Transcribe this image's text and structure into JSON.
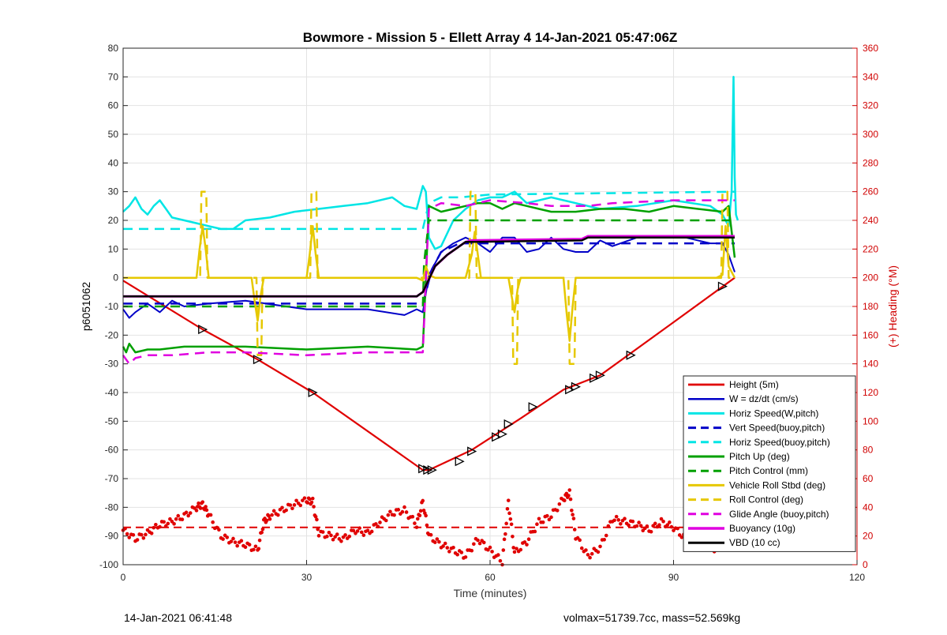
{
  "page": {
    "footer_left": "14-Jan-2021 06:41:48",
    "footer_right": "volmax=51739.7cc, mass=52.569kg"
  },
  "chart_data": {
    "type": "line",
    "title": "Bowmore - Mission 5 - Ellett Array 4 14-Jan-2021 05:47:06Z",
    "xlabel": "Time (minutes)",
    "ylabel": "p6051062",
    "ylabel_right": "(+) Heading (°M)",
    "xlim": [
      0,
      120
    ],
    "ylim": [
      -100,
      80
    ],
    "ylim_right": [
      0,
      360
    ],
    "xticks": [
      0,
      30,
      60,
      90,
      120
    ],
    "yticks": [
      -100,
      -90,
      -80,
      -70,
      -60,
      -50,
      -40,
      -30,
      -20,
      -10,
      0,
      10,
      20,
      30,
      40,
      50,
      60,
      70,
      80
    ],
    "yticks_right": [
      0,
      20,
      40,
      60,
      80,
      100,
      120,
      140,
      160,
      180,
      200,
      220,
      240,
      260,
      280,
      300,
      320,
      340,
      360
    ],
    "grid": true,
    "legend_position": "bottom-right",
    "colors": {
      "height": "#e00000",
      "w": "#0000c8",
      "horiz_speed": "#00e5e5",
      "vert_speed_buoy": "#0000c8",
      "horiz_speed_buoy": "#00e5e5",
      "pitch_up": "#00a000",
      "pitch_control": "#00a000",
      "vehicle_roll": "#e6c800",
      "roll_control": "#e6c800",
      "glide_angle": "#e000e0",
      "buoyancy": "#e000e0",
      "vbd": "#000000",
      "heading": "#e00000",
      "right_axis": "#d00000"
    },
    "series": [
      {
        "name": "Height (5m)",
        "style": "solid",
        "color": "#e00000",
        "width": 2.2,
        "x": [
          0,
          13,
          22,
          31,
          49,
          50,
          57,
          65,
          72,
          78,
          90,
          100
        ],
        "y": [
          -1,
          -18,
          -28.5,
          -40,
          -67,
          -67,
          -60,
          -49,
          -39,
          -34,
          -15.5,
          0
        ]
      },
      {
        "name": "W = dz/dt (cm/s)",
        "style": "solid",
        "color": "#0000c8",
        "width": 2,
        "x": [
          0,
          1,
          2,
          4,
          6,
          8,
          10,
          14,
          20,
          30,
          40,
          46,
          48,
          49,
          50,
          52,
          54,
          56,
          58,
          60,
          62,
          64,
          66,
          68,
          70,
          72,
          74,
          76,
          78,
          80,
          84,
          88,
          92,
          96,
          98,
          99,
          100
        ],
        "y": [
          -11,
          -14,
          -12,
          -9,
          -12,
          -8,
          -10,
          -9,
          -8,
          -11,
          -11,
          -13,
          -11,
          -12,
          1,
          9,
          12,
          14,
          12,
          9,
          14,
          14,
          9,
          10,
          14,
          10,
          9,
          9,
          13,
          11,
          14,
          14,
          14,
          12,
          12,
          8,
          2
        ]
      },
      {
        "name": "Horiz Speed(W,pitch)",
        "style": "solid",
        "color": "#00e5e5",
        "width": 2.5,
        "x": [
          0,
          1,
          2,
          3,
          4,
          5,
          6,
          7,
          8,
          10,
          12,
          14,
          16,
          18,
          20,
          24,
          28,
          32,
          36,
          40,
          44,
          46,
          48,
          49,
          49.5,
          50,
          51,
          52,
          54,
          56,
          58,
          60,
          62,
          64,
          66,
          68,
          70,
          74,
          78,
          84,
          90,
          96,
          98,
          99,
          99.5,
          99.8,
          100,
          100.2,
          100.5
        ],
        "y": [
          23,
          25,
          28,
          24,
          22,
          25,
          27,
          24,
          21,
          20,
          19,
          18,
          17,
          17,
          20,
          21,
          23,
          24,
          25,
          26,
          28,
          25,
          24,
          32,
          30,
          14,
          10,
          11,
          20,
          24,
          27,
          28,
          28,
          30,
          26,
          27,
          28,
          26,
          24,
          25,
          27,
          25,
          22,
          18,
          30,
          70,
          35,
          22,
          20
        ]
      },
      {
        "name": "Vert Speed(buoy,pitch)",
        "style": "dashed",
        "color": "#0000c8",
        "width": 2.5,
        "x": [
          0,
          49,
          50.5,
          52,
          55,
          100
        ],
        "y": [
          -9,
          -9,
          3,
          9,
          12,
          12
        ]
      },
      {
        "name": "Horiz Speed(buoy,pitch)",
        "style": "dashed",
        "color": "#00e5e5",
        "width": 2.5,
        "x": [
          0,
          49,
          50,
          52,
          55,
          60,
          100
        ],
        "y": [
          17,
          17,
          26,
          28,
          28,
          29,
          30
        ]
      },
      {
        "name": "Pitch Up (deg)",
        "style": "solid",
        "color": "#00a000",
        "width": 2.5,
        "x": [
          0,
          0.5,
          1,
          2,
          4,
          6,
          10,
          20,
          30,
          40,
          48,
          49,
          49.2,
          50,
          52,
          54,
          56,
          58,
          60,
          62,
          64,
          66,
          68,
          70,
          74,
          78,
          82,
          86,
          90,
          94,
          98,
          99,
          100
        ],
        "y": [
          -24,
          -26,
          -23,
          -26,
          -25,
          -25,
          -24,
          -24,
          -25,
          -24,
          -25,
          -24,
          -15,
          25,
          23,
          24,
          25,
          26,
          26,
          24,
          26,
          25,
          24,
          23,
          23,
          24,
          24,
          23,
          25,
          24,
          23,
          25,
          7
        ]
      },
      {
        "name": "Pitch Control (mm)",
        "style": "dashed",
        "color": "#00a000",
        "width": 2.5,
        "x": [
          0,
          49,
          49.2,
          50,
          100
        ],
        "y": [
          -10,
          -10,
          5,
          20,
          20
        ]
      },
      {
        "name": "Vehicle Roll Stbd (deg)",
        "style": "solid",
        "color": "#e6c800",
        "width": 2.5,
        "x": [
          0,
          12,
          12.5,
          13,
          13.5,
          14,
          21,
          21.5,
          22,
          22.5,
          23,
          30,
          30.5,
          31,
          31.5,
          32,
          48,
          49,
          49.5,
          50,
          51,
          56,
          57,
          57.5,
          58,
          58.5,
          63,
          63.5,
          64,
          64.5,
          65,
          72,
          72.5,
          73,
          73.5,
          74,
          97,
          98,
          98.5,
          99,
          100
        ],
        "y": [
          0,
          0,
          10,
          18,
          10,
          0,
          0,
          -8,
          -15,
          -6,
          0,
          0,
          8,
          18,
          8,
          0,
          0,
          -1,
          4,
          1,
          0,
          0,
          8,
          16,
          8,
          0,
          0,
          -6,
          -12,
          -4,
          0,
          0,
          -12,
          -22,
          -10,
          0,
          0,
          1,
          18,
          4,
          0
        ]
      },
      {
        "name": "Roll Control (deg)",
        "style": "dashed",
        "color": "#e6c800",
        "width": 2.5,
        "x": [
          0,
          12.6,
          12.8,
          13.6,
          13.8,
          21.8,
          22,
          22.6,
          22.8,
          30.6,
          30.8,
          31.6,
          31.8,
          56.6,
          56.8,
          57.6,
          57.8,
          63.6,
          63.8,
          64.4,
          64.6,
          72.8,
          73,
          73.8,
          74,
          97.8,
          98,
          98.8,
          99,
          100
        ],
        "y": [
          0,
          0,
          30,
          30,
          0,
          0,
          -27,
          -27,
          0,
          0,
          30,
          30,
          0,
          0,
          30,
          30,
          0,
          0,
          -30,
          -30,
          0,
          0,
          -30,
          -30,
          0,
          0,
          30,
          30,
          0,
          0
        ]
      },
      {
        "name": "Glide Angle (buoy,pitch)",
        "style": "dashed",
        "color": "#e000e0",
        "width": 2.5,
        "x": [
          0,
          1,
          2,
          4,
          8,
          14,
          20,
          30,
          40,
          48,
          49,
          50,
          52,
          56,
          60,
          66,
          70,
          76,
          80,
          90,
          100
        ],
        "y": [
          -27,
          -30,
          -28,
          -27,
          -27,
          -26,
          -26,
          -27,
          -26,
          -26,
          -26,
          24,
          26,
          25,
          27,
          26,
          25,
          25,
          26,
          27,
          27
        ]
      },
      {
        "name": "Buoyancy (10g)",
        "style": "solid",
        "color": "#e000e0",
        "width": 3,
        "x": [
          0,
          48,
          49,
          51,
          53,
          55,
          56,
          57,
          75,
          76,
          100
        ],
        "y": [
          -6.5,
          -6.5,
          -5,
          4,
          8,
          11,
          12.5,
          13,
          13.5,
          14.5,
          14.5
        ]
      },
      {
        "name": "VBD (10 cc)",
        "style": "solid",
        "color": "#000000",
        "width": 2.5,
        "x": [
          0,
          48,
          49,
          51,
          53,
          55,
          56,
          57,
          75,
          76,
          100
        ],
        "y": [
          -6.5,
          -6.5,
          -5,
          4,
          8,
          11,
          12.5,
          12.5,
          13,
          14,
          14
        ]
      }
    ],
    "heading": {
      "name": "Heading (°M)",
      "axis": "right",
      "type": "scatter",
      "color": "#e00000",
      "target": 26,
      "x": [
        0,
        2,
        4,
        6,
        8,
        10,
        12,
        13,
        14,
        16,
        18,
        20,
        22,
        23,
        24,
        26,
        28,
        30,
        31,
        32,
        34,
        36,
        38,
        40,
        42,
        44,
        46,
        48,
        49,
        50,
        52,
        54,
        56,
        58,
        60,
        62,
        63,
        64,
        66,
        68,
        70,
        72,
        73,
        74,
        76,
        78,
        80,
        82,
        84,
        86,
        88,
        90,
        92,
        94,
        96,
        97,
        98,
        99,
        100
      ],
      "y": [
        24,
        18,
        22,
        28,
        30,
        34,
        40,
        42,
        35,
        20,
        16,
        14,
        10,
        30,
        34,
        38,
        42,
        45,
        44,
        22,
        20,
        18,
        24,
        22,
        30,
        36,
        38,
        28,
        44,
        20,
        14,
        10,
        6,
        18,
        10,
        2,
        44,
        8,
        16,
        30,
        34,
        46,
        50,
        20,
        6,
        12,
        32,
        30,
        28,
        24,
        30,
        26,
        18,
        20,
        14,
        10,
        34,
        36,
        32
      ]
    },
    "triangle_markers": {
      "x": [
        13,
        22,
        31,
        49,
        49.8,
        50.5,
        55,
        57,
        61,
        62,
        63,
        67,
        73,
        74,
        77,
        78,
        83,
        98
      ],
      "y": [
        -18,
        -28.5,
        -40,
        -66.5,
        -67,
        -67,
        -64,
        -60.5,
        -55.5,
        -54.5,
        -51,
        -45,
        -39,
        -38,
        -35,
        -34,
        -27,
        -3
      ]
    },
    "legend": [
      "Height (5m)",
      "W = dz/dt (cm/s)",
      "Horiz Speed(W,pitch)",
      "Vert Speed(buoy,pitch)",
      "Horiz Speed(buoy,pitch)",
      "Pitch Up (deg)",
      "Pitch Control (mm)",
      "Vehicle Roll Stbd (deg)",
      "Roll Control (deg)",
      "Glide Angle (buoy,pitch)",
      "Buoyancy (10g)",
      "VBD (10 cc)"
    ]
  }
}
